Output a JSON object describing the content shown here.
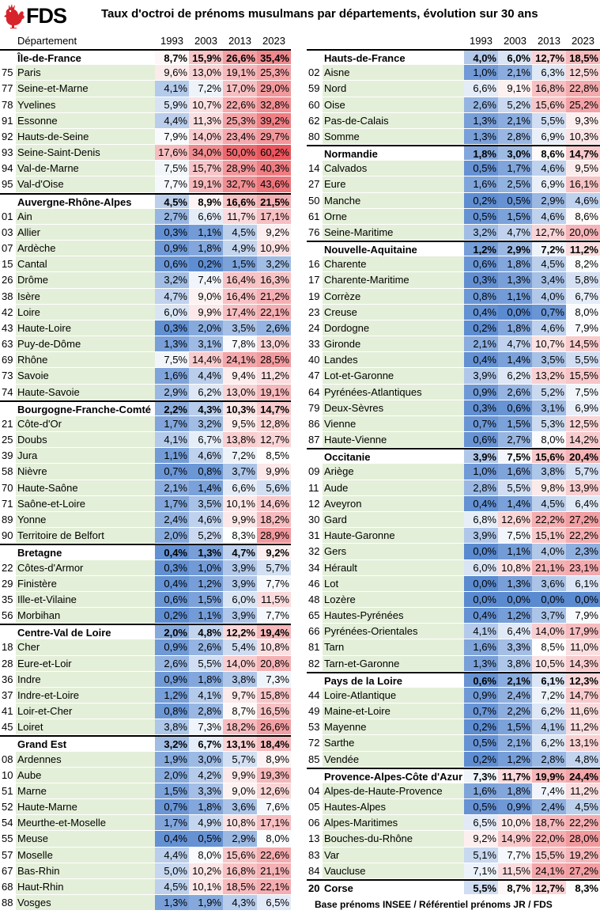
{
  "header": {
    "logo_text": "FDS",
    "title": "Taux d'octroi de prénoms musulmans par départements, évolution sur 30 ans"
  },
  "columns": {
    "dept_label": "Département",
    "years": [
      "1993",
      "2003",
      "2013",
      "2023"
    ]
  },
  "footer": "Base prénoms INSEE / Référentiel prénoms JR / FDS",
  "colors": {
    "low": "#5a8ad0",
    "mid": "#ffffff",
    "high": "#e8555c",
    "label_band": "#e4efd9"
  },
  "left": [
    {
      "r": true,
      "n": "Île-de-France",
      "v": [
        "8,7%",
        "15,9%",
        "26,6%",
        "35,4%"
      ]
    },
    {
      "c": "75",
      "n": "Paris",
      "v": [
        "9,6%",
        "13,0%",
        "19,1%",
        "25,3%"
      ]
    },
    {
      "c": "77",
      "n": "Seine-et-Marne",
      "v": [
        "4,1%",
        "7,2%",
        "17,0%",
        "29,0%"
      ]
    },
    {
      "c": "78",
      "n": "Yvelines",
      "v": [
        "5,9%",
        "10,7%",
        "22,6%",
        "32,8%"
      ]
    },
    {
      "c": "91",
      "n": "Essonne",
      "v": [
        "4,4%",
        "11,3%",
        "25,3%",
        "39,2%"
      ]
    },
    {
      "c": "92",
      "n": "Hauts-de-Seine",
      "v": [
        "7,9%",
        "14,0%",
        "23,4%",
        "29,7%"
      ]
    },
    {
      "c": "93",
      "n": "Seine-Saint-Denis",
      "v": [
        "17,6%",
        "34,0%",
        "50,0%",
        "60,2%"
      ]
    },
    {
      "c": "94",
      "n": "Val-de-Marne",
      "v": [
        "7,5%",
        "15,7%",
        "28,9%",
        "40,3%"
      ]
    },
    {
      "c": "95",
      "n": "Val-d'Oise",
      "v": [
        "7,7%",
        "19,1%",
        "32,7%",
        "43,6%"
      ]
    },
    {
      "r": true,
      "n": "Auvergne-Rhône-Alpes",
      "v": [
        "4,5%",
        "8,9%",
        "16,6%",
        "21,5%"
      ]
    },
    {
      "c": "01",
      "n": "Ain",
      "v": [
        "2,7%",
        "6,6%",
        "11,7%",
        "17,1%"
      ]
    },
    {
      "c": "03",
      "n": "Allier",
      "v": [
        "0,3%",
        "1,1%",
        "4,5%",
        "9,2%"
      ]
    },
    {
      "c": "07",
      "n": "Ardèche",
      "v": [
        "0,9%",
        "1,8%",
        "4,9%",
        "10,9%"
      ]
    },
    {
      "c": "15",
      "n": "Cantal",
      "v": [
        "0,6%",
        "0,2%",
        "1,5%",
        "3,2%"
      ]
    },
    {
      "c": "26",
      "n": "Drôme",
      "v": [
        "3,2%",
        "7,4%",
        "16,4%",
        "16,3%"
      ]
    },
    {
      "c": "38",
      "n": "Isère",
      "v": [
        "4,7%",
        "9,0%",
        "16,4%",
        "21,2%"
      ]
    },
    {
      "c": "42",
      "n": "Loire",
      "v": [
        "6,0%",
        "9,9%",
        "17,4%",
        "22,1%"
      ]
    },
    {
      "c": "43",
      "n": "Haute-Loire",
      "v": [
        "0,3%",
        "2,0%",
        "3,5%",
        "2,6%"
      ]
    },
    {
      "c": "63",
      "n": "Puy-de-Dôme",
      "v": [
        "1,3%",
        "3,1%",
        "7,8%",
        "13,0%"
      ]
    },
    {
      "c": "69",
      "n": "Rhône",
      "v": [
        "7,5%",
        "14,4%",
        "24,1%",
        "28,5%"
      ]
    },
    {
      "c": "73",
      "n": "Savoie",
      "v": [
        "1,6%",
        "4,4%",
        "9,4%",
        "11,2%"
      ]
    },
    {
      "c": "74",
      "n": "Haute-Savoie",
      "v": [
        "2,9%",
        "6,2%",
        "13,0%",
        "19,1%"
      ]
    },
    {
      "r": true,
      "n": "Bourgogne-Franche-Comté",
      "v": [
        "2,2%",
        "4,3%",
        "10,3%",
        "14,7%"
      ]
    },
    {
      "c": "21",
      "n": "Côte-d'Or",
      "v": [
        "1,7%",
        "3,2%",
        "9,5%",
        "12,8%"
      ]
    },
    {
      "c": "25",
      "n": "Doubs",
      "v": [
        "4,1%",
        "6,7%",
        "13,8%",
        "12,7%"
      ]
    },
    {
      "c": "39",
      "n": "Jura",
      "v": [
        "1,1%",
        "4,6%",
        "7,2%",
        "8,5%"
      ]
    },
    {
      "c": "58",
      "n": "Nièvre",
      "v": [
        "0,7%",
        "0,8%",
        "3,7%",
        "9,9%"
      ]
    },
    {
      "c": "70",
      "n": "Haute-Saône",
      "v": [
        "2,1%",
        "1,4%",
        "6,6%",
        "5,6%"
      ]
    },
    {
      "c": "71",
      "n": "Saône-et-Loire",
      "v": [
        "1,7%",
        "3,5%",
        "10,1%",
        "14,6%"
      ]
    },
    {
      "c": "89",
      "n": "Yonne",
      "v": [
        "2,4%",
        "4,6%",
        "9,9%",
        "18,2%"
      ]
    },
    {
      "c": "90",
      "n": "Territoire de Belfort",
      "v": [
        "2,0%",
        "5,2%",
        "8,3%",
        "28,9%"
      ]
    },
    {
      "r": true,
      "n": "Bretagne",
      "v": [
        "0,4%",
        "1,3%",
        "4,7%",
        "9,2%"
      ]
    },
    {
      "c": "22",
      "n": "Côtes-d'Armor",
      "v": [
        "0,3%",
        "1,0%",
        "3,9%",
        "5,7%"
      ]
    },
    {
      "c": "29",
      "n": "Finistère",
      "v": [
        "0,4%",
        "1,2%",
        "3,9%",
        "7,7%"
      ]
    },
    {
      "c": "35",
      "n": "Ille-et-Vilaine",
      "v": [
        "0,6%",
        "1,5%",
        "6,0%",
        "11,5%"
      ]
    },
    {
      "c": "56",
      "n": "Morbihan",
      "v": [
        "0,2%",
        "1,1%",
        "3,9%",
        "7,7%"
      ]
    },
    {
      "r": true,
      "n": "Centre-Val de Loire",
      "v": [
        "2,0%",
        "4,8%",
        "12,2%",
        "19,4%"
      ]
    },
    {
      "c": "18",
      "n": "Cher",
      "v": [
        "0,9%",
        "2,6%",
        "5,4%",
        "10,8%"
      ]
    },
    {
      "c": "28",
      "n": "Eure-et-Loir",
      "v": [
        "2,6%",
        "5,5%",
        "14,0%",
        "20,8%"
      ]
    },
    {
      "c": "36",
      "n": "Indre",
      "v": [
        "0,9%",
        "1,8%",
        "3,8%",
        "7,3%"
      ]
    },
    {
      "c": "37",
      "n": "Indre-et-Loire",
      "v": [
        "1,2%",
        "4,1%",
        "9,7%",
        "15,8%"
      ]
    },
    {
      "c": "41",
      "n": "Loir-et-Cher",
      "v": [
        "0,8%",
        "2,8%",
        "8,7%",
        "16,5%"
      ]
    },
    {
      "c": "45",
      "n": "Loiret",
      "v": [
        "3,8%",
        "7,3%",
        "18,2%",
        "26,6%"
      ]
    },
    {
      "r": true,
      "n": "Grand Est",
      "v": [
        "3,2%",
        "6,7%",
        "13,1%",
        "18,4%"
      ]
    },
    {
      "c": "08",
      "n": "Ardennes",
      "v": [
        "1,9%",
        "3,0%",
        "5,7%",
        "8,9%"
      ]
    },
    {
      "c": "10",
      "n": "Aube",
      "v": [
        "2,0%",
        "4,2%",
        "9,9%",
        "19,3%"
      ]
    },
    {
      "c": "51",
      "n": "Marne",
      "v": [
        "1,5%",
        "3,3%",
        "9,0%",
        "12,6%"
      ]
    },
    {
      "c": "52",
      "n": "Haute-Marne",
      "v": [
        "0,7%",
        "1,8%",
        "3,6%",
        "7,6%"
      ]
    },
    {
      "c": "54",
      "n": "Meurthe-et-Moselle",
      "v": [
        "1,7%",
        "4,9%",
        "10,8%",
        "17,1%"
      ]
    },
    {
      "c": "55",
      "n": "Meuse",
      "v": [
        "0,4%",
        "0,5%",
        "2,9%",
        "8,0%"
      ]
    },
    {
      "c": "57",
      "n": "Moselle",
      "v": [
        "4,4%",
        "8,0%",
        "15,6%",
        "22,6%"
      ]
    },
    {
      "c": "67",
      "n": "Bas-Rhin",
      "v": [
        "5,0%",
        "10,2%",
        "16,8%",
        "21,1%"
      ]
    },
    {
      "c": "68",
      "n": "Haut-Rhin",
      "v": [
        "4,5%",
        "10,1%",
        "18,5%",
        "22,1%"
      ]
    },
    {
      "c": "88",
      "n": "Vosges",
      "v": [
        "1,3%",
        "1,9%",
        "4,3%",
        "6,5%"
      ]
    }
  ],
  "right": [
    {
      "r": true,
      "n": "Hauts-de-France",
      "v": [
        "4,0%",
        "6,0%",
        "12,7%",
        "18,5%"
      ]
    },
    {
      "c": "02",
      "n": "Aisne",
      "v": [
        "1,0%",
        "2,1%",
        "6,3%",
        "12,5%"
      ]
    },
    {
      "c": "59",
      "n": "Nord",
      "v": [
        "6,6%",
        "9,1%",
        "16,8%",
        "22,8%"
      ]
    },
    {
      "c": "60",
      "n": "Oise",
      "v": [
        "2,6%",
        "5,2%",
        "15,6%",
        "25,2%"
      ]
    },
    {
      "c": "62",
      "n": "Pas-de-Calais",
      "v": [
        "1,3%",
        "2,1%",
        "5,5%",
        "9,3%"
      ]
    },
    {
      "c": "80",
      "n": "Somme",
      "v": [
        "1,3%",
        "2,8%",
        "6,9%",
        "10,3%"
      ]
    },
    {
      "r": true,
      "n": "Normandie",
      "v": [
        "1,8%",
        "3,0%",
        "8,6%",
        "14,7%"
      ]
    },
    {
      "c": "14",
      "n": "Calvados",
      "v": [
        "0,5%",
        "1,7%",
        "4,6%",
        "9,5%"
      ]
    },
    {
      "c": "27",
      "n": "Eure",
      "v": [
        "1,6%",
        "2,5%",
        "6,9%",
        "16,1%"
      ]
    },
    {
      "c": "50",
      "n": "Manche",
      "v": [
        "0,2%",
        "0,5%",
        "2,9%",
        "4,6%"
      ]
    },
    {
      "c": "61",
      "n": "Orne",
      "v": [
        "0,5%",
        "1,5%",
        "4,6%",
        "8,6%"
      ]
    },
    {
      "c": "76",
      "n": "Seine-Maritime",
      "v": [
        "3,2%",
        "4,7%",
        "12,7%",
        "20,0%"
      ]
    },
    {
      "r": true,
      "n": "Nouvelle-Aquitaine",
      "v": [
        "1,2%",
        "2,9%",
        "7,2%",
        "11,2%"
      ]
    },
    {
      "c": "16",
      "n": "Charente",
      "v": [
        "0,6%",
        "1,8%",
        "4,5%",
        "8,2%"
      ]
    },
    {
      "c": "17",
      "n": "Charente-Maritime",
      "v": [
        "0,3%",
        "1,3%",
        "3,4%",
        "5,8%"
      ]
    },
    {
      "c": "19",
      "n": "Corrèze",
      "v": [
        "0,8%",
        "1,1%",
        "4,0%",
        "6,7%"
      ]
    },
    {
      "c": "23",
      "n": "Creuse",
      "v": [
        "0,4%",
        "0,0%",
        "0,7%",
        "8,0%"
      ]
    },
    {
      "c": "24",
      "n": "Dordogne",
      "v": [
        "0,2%",
        "1,8%",
        "4,6%",
        "7,9%"
      ]
    },
    {
      "c": "33",
      "n": "Gironde",
      "v": [
        "2,1%",
        "4,7%",
        "10,7%",
        "14,5%"
      ]
    },
    {
      "c": "40",
      "n": "Landes",
      "v": [
        "0,4%",
        "1,4%",
        "3,5%",
        "5,5%"
      ]
    },
    {
      "c": "47",
      "n": "Lot-et-Garonne",
      "v": [
        "3,9%",
        "6,2%",
        "13,2%",
        "15,5%"
      ]
    },
    {
      "c": "64",
      "n": "Pyrénées-Atlantiques",
      "v": [
        "0,9%",
        "2,6%",
        "5,2%",
        "7,5%"
      ]
    },
    {
      "c": "79",
      "n": "Deux-Sèvres",
      "v": [
        "0,3%",
        "0,6%",
        "3,1%",
        "6,9%"
      ]
    },
    {
      "c": "86",
      "n": "Vienne",
      "v": [
        "0,7%",
        "1,5%",
        "5,3%",
        "12,5%"
      ]
    },
    {
      "c": "87",
      "n": "Haute-Vienne",
      "v": [
        "0,6%",
        "2,7%",
        "8,0%",
        "14,2%"
      ]
    },
    {
      "r": true,
      "n": "Occitanie",
      "v": [
        "3,9%",
        "7,5%",
        "15,6%",
        "20,4%"
      ]
    },
    {
      "c": "09",
      "n": "Ariège",
      "v": [
        "1,0%",
        "1,6%",
        "3,8%",
        "5,7%"
      ]
    },
    {
      "c": "11",
      "n": "Aude",
      "v": [
        "2,8%",
        "5,5%",
        "9,8%",
        "13,9%"
      ]
    },
    {
      "c": "12",
      "n": "Aveyron",
      "v": [
        "0,4%",
        "1,4%",
        "4,5%",
        "6,4%"
      ]
    },
    {
      "c": "30",
      "n": "Gard",
      "v": [
        "6,8%",
        "12,6%",
        "22,2%",
        "27,2%"
      ]
    },
    {
      "c": "31",
      "n": "Haute-Garonne",
      "v": [
        "3,9%",
        "7,5%",
        "15,1%",
        "22,2%"
      ]
    },
    {
      "c": "32",
      "n": "Gers",
      "v": [
        "0,0%",
        "1,1%",
        "4,0%",
        "2,3%"
      ]
    },
    {
      "c": "34",
      "n": "Hérault",
      "v": [
        "6,0%",
        "10,8%",
        "21,1%",
        "23,1%"
      ]
    },
    {
      "c": "46",
      "n": "Lot",
      "v": [
        "0,0%",
        "1,3%",
        "3,6%",
        "6,1%"
      ]
    },
    {
      "c": "48",
      "n": "Lozère",
      "v": [
        "0,0%",
        "0,0%",
        "0,0%",
        "0,0%"
      ]
    },
    {
      "c": "65",
      "n": "Hautes-Pyrénées",
      "v": [
        "0,4%",
        "1,2%",
        "3,7%",
        "7,9%"
      ]
    },
    {
      "c": "66",
      "n": "Pyrénées-Orientales",
      "v": [
        "4,1%",
        "6,4%",
        "14,0%",
        "17,9%"
      ]
    },
    {
      "c": "81",
      "n": "Tarn",
      "v": [
        "1,6%",
        "3,3%",
        "8,5%",
        "11,0%"
      ]
    },
    {
      "c": "82",
      "n": "Tarn-et-Garonne",
      "v": [
        "1,3%",
        "3,8%",
        "10,5%",
        "14,3%"
      ]
    },
    {
      "r": true,
      "n": "Pays de la Loire",
      "v": [
        "0,6%",
        "2,1%",
        "6,1%",
        "12,3%"
      ]
    },
    {
      "c": "44",
      "n": "Loire-Atlantique",
      "v": [
        "0,9%",
        "2,4%",
        "7,2%",
        "14,7%"
      ]
    },
    {
      "c": "49",
      "n": "Maine-et-Loire",
      "v": [
        "0,7%",
        "2,2%",
        "6,2%",
        "11,6%"
      ]
    },
    {
      "c": "53",
      "n": "Mayenne",
      "v": [
        "0,2%",
        "1,5%",
        "4,1%",
        "11,2%"
      ]
    },
    {
      "c": "72",
      "n": "Sarthe",
      "v": [
        "0,5%",
        "2,1%",
        "6,2%",
        "13,1%"
      ]
    },
    {
      "c": "85",
      "n": "Vendée",
      "v": [
        "0,2%",
        "1,2%",
        "2,8%",
        "4,8%"
      ]
    },
    {
      "r": true,
      "n": "Provence-Alpes-Côte d'Azur",
      "v": [
        "7,3%",
        "11,7%",
        "19,9%",
        "24,4%"
      ]
    },
    {
      "c": "04",
      "n": "Alpes-de-Haute-Provence",
      "v": [
        "1,6%",
        "1,8%",
        "7,4%",
        "11,2%"
      ]
    },
    {
      "c": "05",
      "n": "Hautes-Alpes",
      "v": [
        "0,5%",
        "0,9%",
        "2,4%",
        "4,5%"
      ]
    },
    {
      "c": "06",
      "n": "Alpes-Maritimes",
      "v": [
        "6,5%",
        "10,0%",
        "18,7%",
        "22,2%"
      ]
    },
    {
      "c": "13",
      "n": "Bouches-du-Rhône",
      "v": [
        "9,2%",
        "14,9%",
        "22,0%",
        "28,0%"
      ]
    },
    {
      "c": "83",
      "n": "Var",
      "v": [
        "5,1%",
        "7,7%",
        "15,5%",
        "19,2%"
      ]
    },
    {
      "c": "84",
      "n": "Vaucluse",
      "v": [
        "7,1%",
        "11,5%",
        "24,1%",
        "27,2%"
      ]
    },
    {
      "r": true,
      "c": "20",
      "n": "Corse",
      "v": [
        "5,5%",
        "8,7%",
        "12,7%",
        "8,3%"
      ]
    }
  ]
}
